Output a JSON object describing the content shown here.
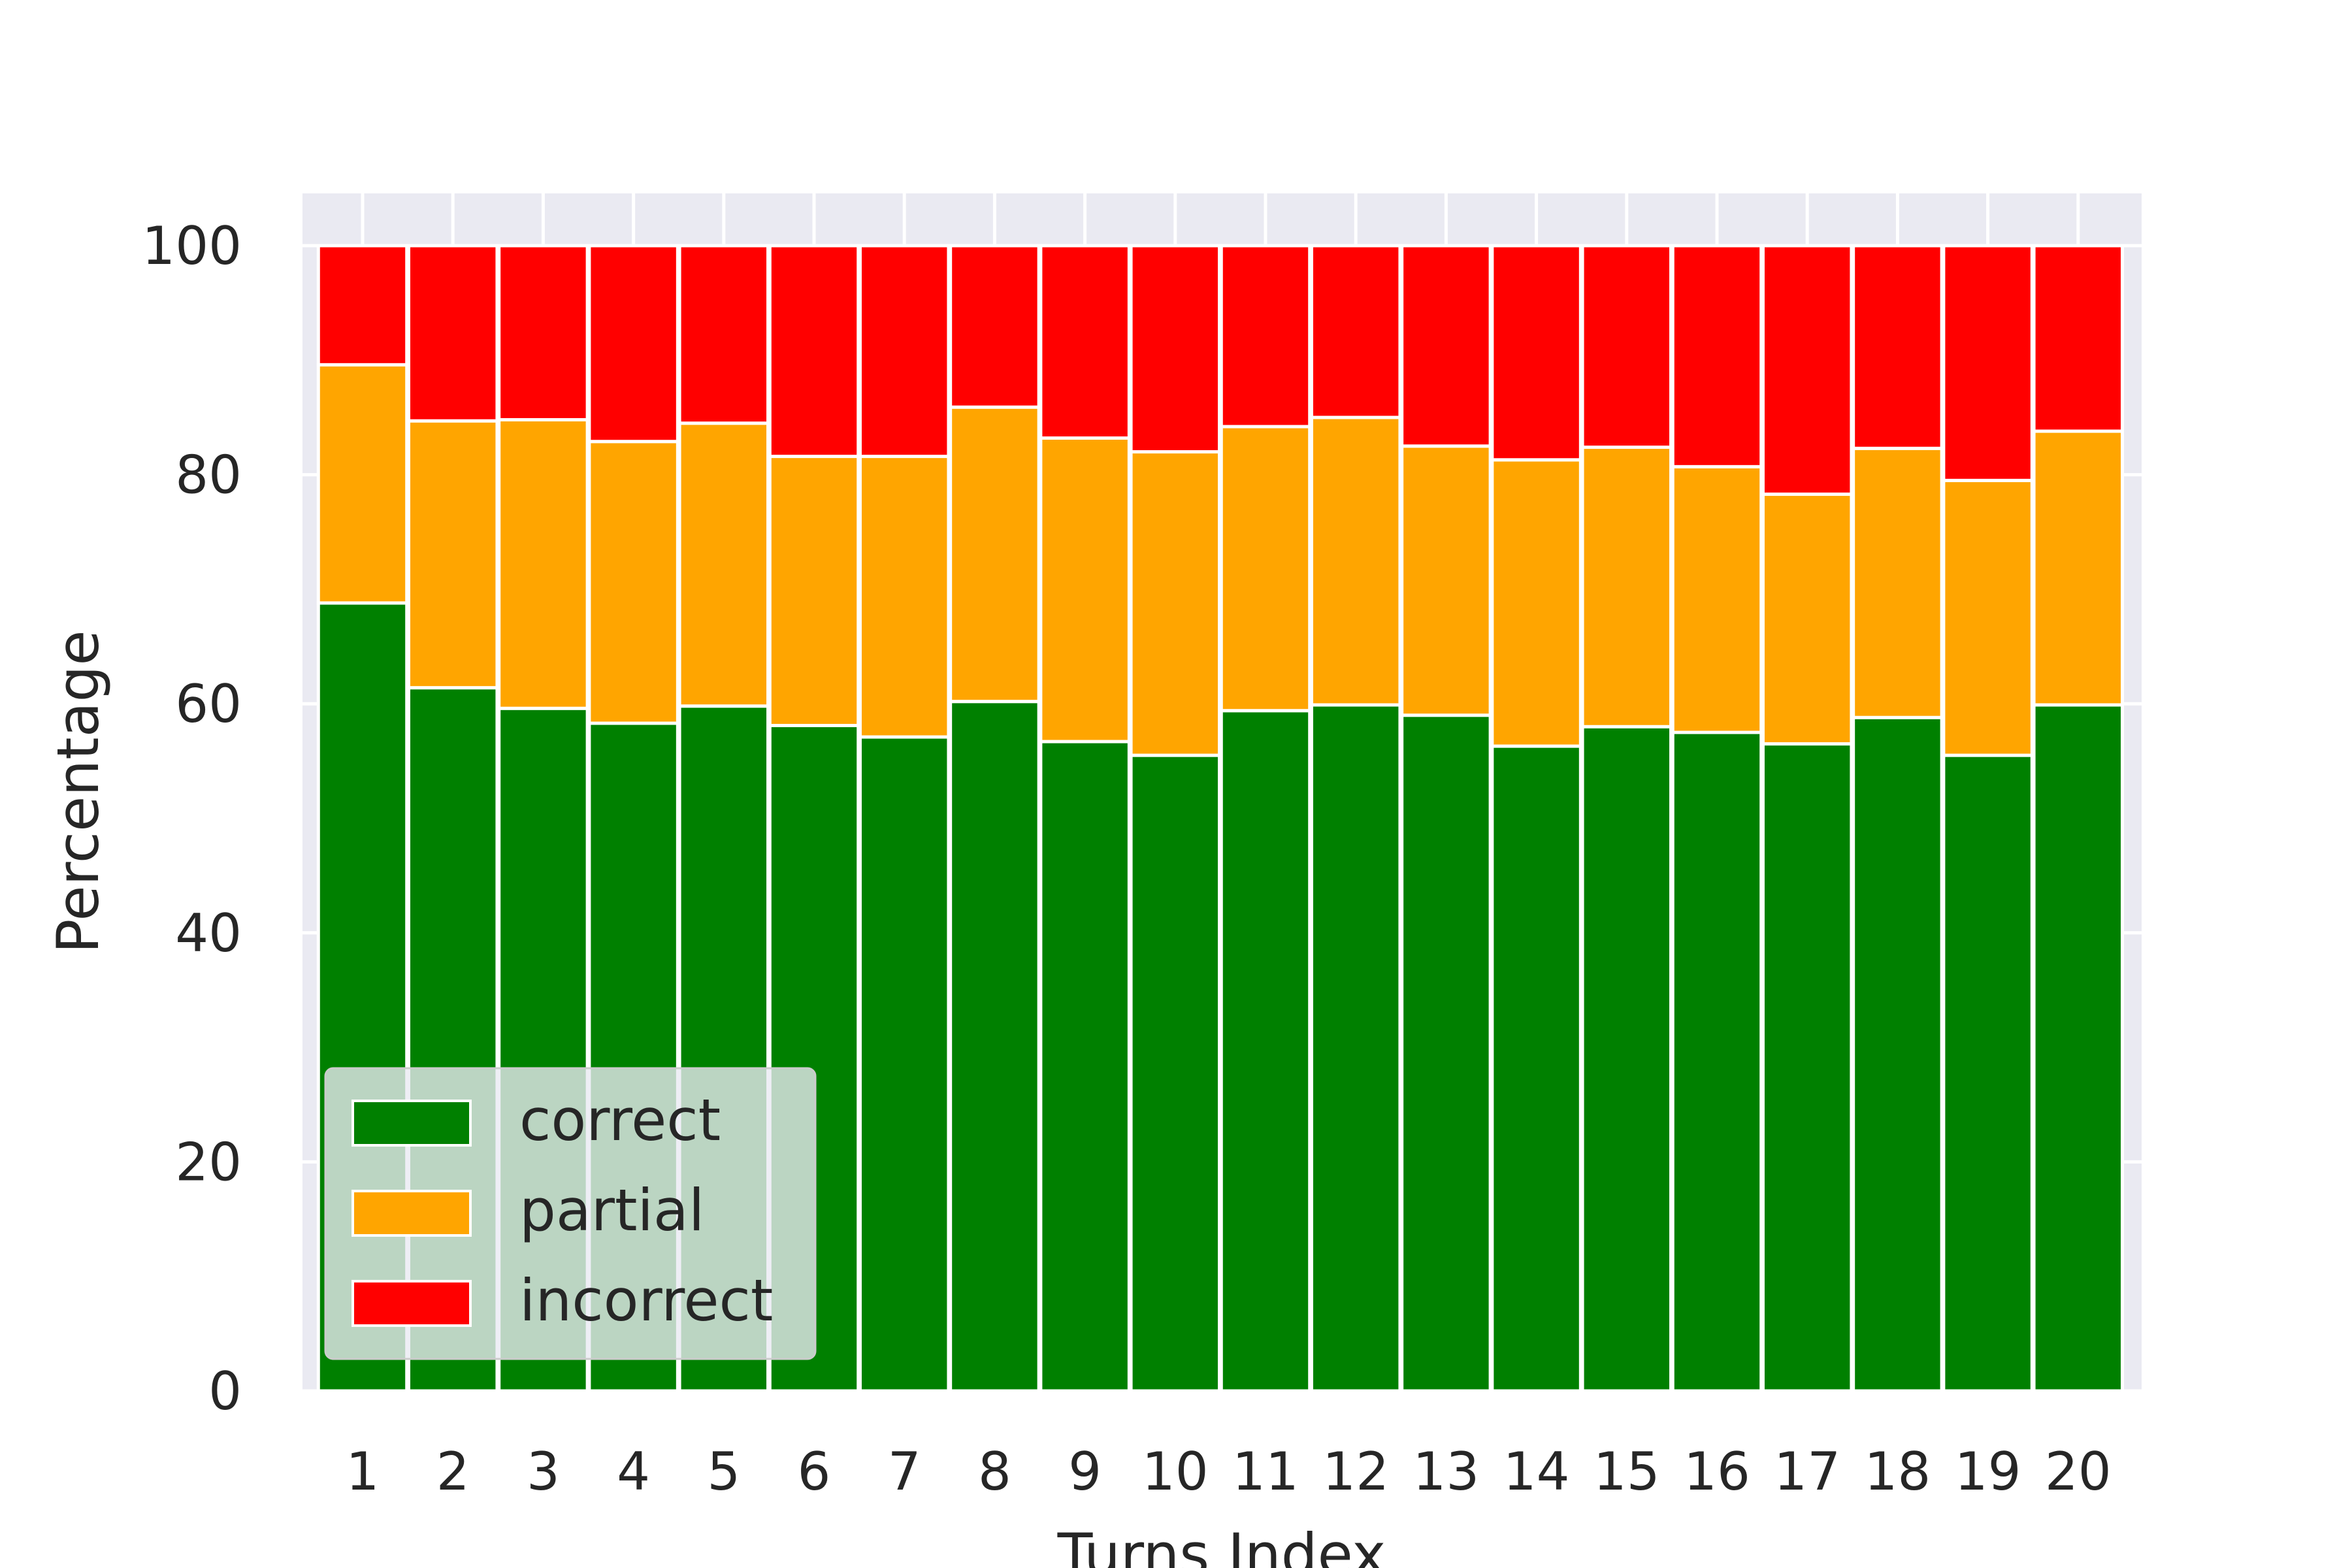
{
  "chart_data": {
    "type": "bar",
    "stacked": true,
    "categories": [
      "1",
      "2",
      "3",
      "4",
      "5",
      "6",
      "7",
      "8",
      "9",
      "10",
      "11",
      "12",
      "13",
      "14",
      "15",
      "16",
      "17",
      "18",
      "19",
      "20"
    ],
    "series": [
      {
        "name": "correct",
        "color": "#008000",
        "values": [
          68.8,
          61.4,
          59.6,
          58.3,
          59.8,
          58.1,
          57.1,
          60.2,
          56.7,
          55.5,
          59.4,
          59.9,
          59.0,
          56.3,
          58.0,
          57.5,
          56.5,
          58.8,
          55.5,
          59.9
        ]
      },
      {
        "name": "partial",
        "color": "#FFA500",
        "values": [
          20.8,
          23.3,
          25.2,
          24.6,
          24.7,
          23.5,
          24.5,
          25.7,
          26.5,
          26.5,
          24.8,
          25.1,
          23.5,
          25.0,
          24.4,
          23.2,
          21.8,
          23.5,
          24.0,
          23.9
        ]
      },
      {
        "name": "incorrect",
        "color": "#FF0000",
        "values": [
          10.4,
          15.3,
          15.2,
          17.1,
          15.5,
          18.4,
          18.4,
          14.1,
          16.8,
          18.0,
          15.8,
          15.0,
          17.5,
          18.7,
          17.6,
          19.3,
          21.7,
          17.7,
          20.5,
          16.2
        ]
      }
    ],
    "xlabel": "Turns Index",
    "ylabel": "Percentage",
    "ylim": [
      0,
      105
    ],
    "yticks": [
      0,
      20,
      40,
      60,
      80,
      100
    ],
    "grid": true,
    "legend": "bottom-left"
  }
}
